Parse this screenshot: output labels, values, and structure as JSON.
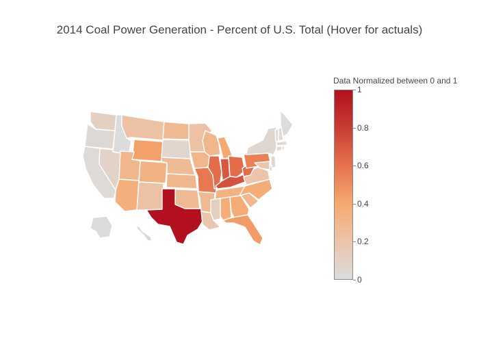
{
  "title": "2014 Coal Power Generation - Percent of U.S. Total (Hover for actuals)",
  "colorbar": {
    "title": "Data Normalized between 0 and 1",
    "ticks": [
      "0",
      "0.2",
      "0.4",
      "0.6",
      "0.8",
      "1"
    ],
    "tick_values": [
      0,
      0.2,
      0.4,
      0.6,
      0.8,
      1
    ],
    "colors": [
      "#dcdcdc",
      "#ebc4aa",
      "#f5a96e",
      "#e6724e",
      "#c83d33",
      "#b2101e"
    ]
  },
  "chart_data": {
    "type": "choropleth",
    "scope": "usa",
    "values_normalized": {
      "WA": 0.1,
      "OR": 0.03,
      "CA": 0.02,
      "NV": 0.08,
      "ID": 0.0,
      "MT": 0.22,
      "WY": 0.43,
      "UT": 0.3,
      "AZ": 0.35,
      "CO": 0.33,
      "NM": 0.22,
      "ND": 0.28,
      "SD": 0.06,
      "NE": 0.27,
      "KS": 0.3,
      "OK": 0.28,
      "TX": 1.0,
      "MN": 0.22,
      "IA": 0.3,
      "MO": 0.58,
      "AR": 0.28,
      "LA": 0.18,
      "WI": 0.3,
      "IL": 0.62,
      "MI": 0.4,
      "IN": 0.7,
      "OH": 0.62,
      "KY": 0.72,
      "TN": 0.33,
      "MS": 0.12,
      "AL": 0.37,
      "GA": 0.38,
      "FL": 0.45,
      "SC": 0.3,
      "NC": 0.37,
      "VA": 0.2,
      "WV": 0.62,
      "PA": 0.55,
      "NY": 0.05,
      "ME": 0.0,
      "VT": 0.0,
      "NH": 0.02,
      "MA": 0.02,
      "CT": 0.01,
      "RI": 0.0,
      "NJ": 0.05,
      "DE": 0.05,
      "MD": 0.18,
      "AK": 0.01,
      "HI": 0.04
    }
  }
}
